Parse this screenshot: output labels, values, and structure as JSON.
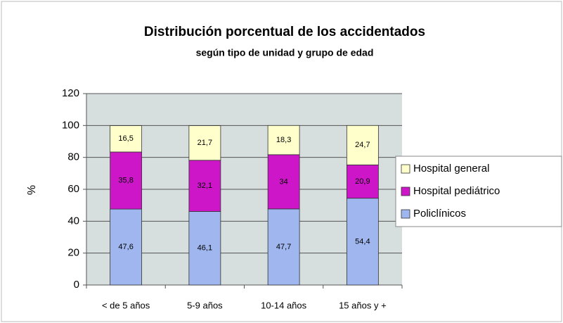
{
  "chart_data": {
    "type": "stacked_bar",
    "title": "Distribución porcentual de los accidentados",
    "subtitle": "según tipo de unidad y grupo de edad",
    "y_label": "%",
    "categories": [
      "< de 5 años",
      "5-9 años",
      "10-14 años",
      "15 años y +"
    ],
    "series": [
      {
        "name": "Policlínicos",
        "color": "#9fb6ee",
        "values": [
          47.6,
          46.1,
          47.7,
          54.4
        ],
        "value_labels": [
          "47,6",
          "46,1",
          "47,7",
          "54,4"
        ]
      },
      {
        "name": "Hospital pediátrico",
        "color": "#cc16c8",
        "values": [
          35.8,
          32.1,
          34,
          20.9
        ],
        "value_labels": [
          "35,8",
          "32,1",
          "34",
          "20,9"
        ]
      },
      {
        "name": "Hospital general",
        "color": "#ffffcc",
        "values": [
          16.5,
          21.7,
          18.3,
          24.7
        ],
        "value_labels": [
          "16,5",
          "21,7",
          "18,3",
          "24,7"
        ]
      }
    ],
    "ylim": [
      0,
      120
    ],
    "yticks": [
      0,
      20,
      40,
      60,
      80,
      100,
      120
    ],
    "grid": true,
    "legend": "right"
  }
}
